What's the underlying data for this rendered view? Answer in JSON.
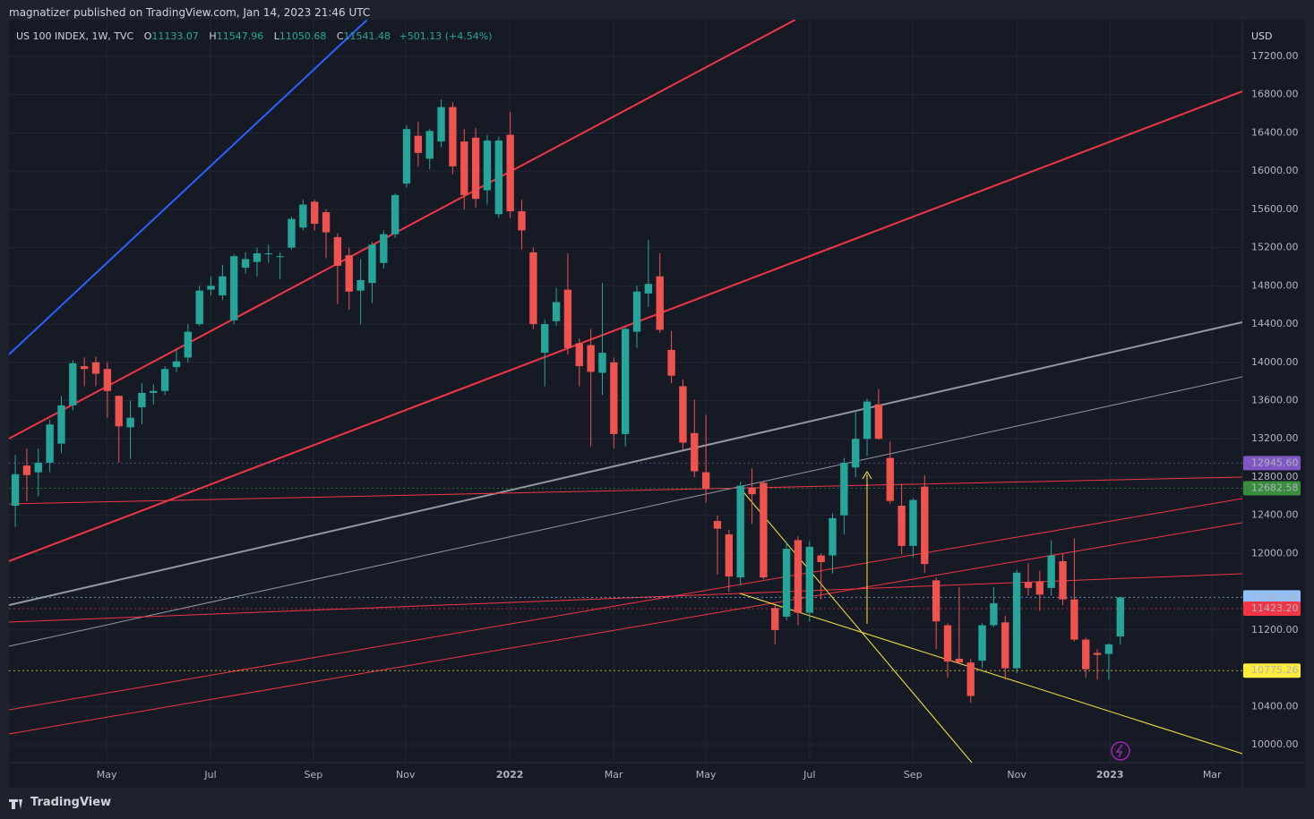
{
  "header": {
    "publisher": "magnatizer published on TradingView.com, Jan 14, 2023 21:46 UTC",
    "brand": "TradingView"
  },
  "chart_data": {
    "type": "candlestick",
    "legend": {
      "symbol": "US 100 INDEX, 1W, TVC",
      "keys": [
        "O",
        "H",
        "L",
        "C"
      ],
      "change": "+501.13 (+4.54%)"
    },
    "currency": "USD",
    "up_color": "#26a69a",
    "down_color": "#ef5350",
    "open": [
      12500,
      12920,
      12850,
      12950,
      13150,
      13550,
      13960,
      14000,
      13930,
      13650,
      13320,
      13530,
      13680,
      13700,
      13950,
      14050,
      14400,
      14760,
      14700,
      14440,
      14990,
      15050,
      15130,
      15100,
      15200,
      15410,
      15680,
      15570,
      15310,
      15120,
      14750,
      14830,
      15040,
      15340,
      15870,
      16370,
      16130,
      16310,
      16670,
      16310,
      16350,
      15800,
      15550,
      16380,
      15580,
      15150,
      14100,
      14430,
      14760,
      14200,
      14180,
      13890,
      14000,
      13250,
      14320,
      14720,
      14900,
      14130,
      13750,
      13260,
      12850,
      12340,
      12200,
      11750,
      12690,
      12740,
      11430,
      11340,
      12140,
      11380,
      11980,
      11980,
      12400,
      12900,
      13200,
      13560,
      13000,
      12500,
      12080,
      12700,
      11720,
      11250,
      10900,
      10860,
      10880,
      11250,
      11280,
      10800,
      11700,
      11710,
      11640,
      11920,
      11520,
      11100,
      10960,
      10950,
      11133.07
    ],
    "high": [
      13030,
      13100,
      13100,
      13400,
      13650,
      14020,
      14050,
      14060,
      14000,
      13650,
      13600,
      13780,
      13770,
      13960,
      14130,
      14400,
      14800,
      14900,
      15020,
      15130,
      15150,
      15200,
      15230,
      15150,
      15520,
      15700,
      15700,
      15600,
      15350,
      15200,
      15080,
      15260,
      15380,
      15770,
      16480,
      16520,
      16440,
      16750,
      16720,
      16440,
      16450,
      16380,
      16360,
      16620,
      15700,
      15200,
      14450,
      14780,
      15140,
      14250,
      14350,
      14830,
      14050,
      14370,
      14800,
      15280,
      15140,
      14330,
      13820,
      13610,
      13450,
      12400,
      12250,
      12750,
      12890,
      12760,
      11460,
      12120,
      12180,
      12130,
      12000,
      12420,
      13000,
      13500,
      13620,
      13720,
      13170,
      12730,
      12580,
      12820,
      11750,
      11270,
      11650,
      10900,
      11270,
      11650,
      11350,
      11830,
      11900,
      11820,
      12140,
      12000,
      12160,
      11120,
      11000,
      11060,
      11547.96
    ],
    "low": [
      12280,
      12550,
      12600,
      12850,
      13050,
      13500,
      13750,
      13750,
      13420,
      12950,
      12990,
      13350,
      13560,
      13660,
      13900,
      14000,
      14380,
      14700,
      14650,
      14400,
      14930,
      14900,
      15040,
      14870,
      15180,
      15380,
      15380,
      15090,
      14610,
      14550,
      14400,
      14620,
      14980,
      15300,
      15830,
      16050,
      16020,
      16250,
      15970,
      15600,
      15620,
      15650,
      15510,
      15510,
      15180,
      14350,
      13750,
      14380,
      14080,
      13750,
      13120,
      13660,
      13100,
      13120,
      14150,
      14580,
      14310,
      13780,
      13090,
      12800,
      12530,
      11780,
      11600,
      11670,
      12310,
      11730,
      11050,
      11300,
      11250,
      11290,
      11520,
      11790,
      12200,
      12800,
      13020,
      13190,
      12520,
      11990,
      11960,
      11800,
      11000,
      10700,
      10840,
      10440,
      10800,
      11230,
      10680,
      10750,
      11560,
      11400,
      11560,
      11460,
      11080,
      10700,
      10680,
      10680,
      11050.68
    ],
    "close": [
      12830,
      12820,
      12950,
      13350,
      13550,
      13990,
      13930,
      13880,
      13700,
      13330,
      13420,
      13680,
      13700,
      13930,
      14010,
      14320,
      14750,
      14800,
      14900,
      15110,
      15080,
      15140,
      15140,
      15110,
      15500,
      15650,
      15450,
      15360,
      15010,
      14740,
      14860,
      15230,
      15340,
      15750,
      16440,
      16190,
      16420,
      16670,
      16050,
      15750,
      15710,
      16320,
      16320,
      15580,
      15380,
      14400,
      14400,
      14630,
      14150,
      13960,
      13900,
      14100,
      13250,
      14350,
      14740,
      14820,
      14340,
      13860,
      13160,
      12860,
      12680,
      12260,
      11760,
      12710,
      12620,
      11750,
      11200,
      12050,
      11380,
      12070,
      11910,
      12370,
      12950,
      13200,
      13590,
      13200,
      12550,
      12080,
      12560,
      11890,
      11290,
      10870,
      10860,
      10510,
      11250,
      11480,
      10800,
      11800,
      11640,
      11570,
      11980,
      11520,
      11100,
      10790,
      10940,
      11050,
      11541.48
    ],
    "xlim": [
      -0.55,
      106.6
    ],
    "xticks": [
      {
        "value": 7.94,
        "label": "May"
      },
      {
        "value": 16.96,
        "label": "Jul"
      },
      {
        "value": 25.9,
        "label": "Sep"
      },
      {
        "value": 33.9,
        "label": "Nov"
      },
      {
        "value": 42.96,
        "label": "2022"
      },
      {
        "value": 51.98,
        "label": "Mar"
      },
      {
        "value": 60,
        "label": "May"
      },
      {
        "value": 69,
        "label": "Jul"
      },
      {
        "value": 77.98,
        "label": "Sep"
      },
      {
        "value": 87,
        "label": "Nov"
      },
      {
        "value": 95.1,
        "label": "2023"
      },
      {
        "value": 103.97,
        "label": "Mar"
      }
    ],
    "ylim": [
      9813,
      17584
    ],
    "yticks": [
      {
        "value": 10000,
        "label": "10000.00"
      },
      {
        "value": 10400,
        "label": "10400.00"
      },
      {
        "value": 11200,
        "label": "11200.00"
      },
      {
        "value": 12000,
        "label": "12000.00"
      },
      {
        "value": 12400,
        "label": "12400.00"
      },
      {
        "value": 12800,
        "label": "12800.00"
      },
      {
        "value": 13200,
        "label": "13200.00"
      },
      {
        "value": 13600,
        "label": "13600.00"
      },
      {
        "value": 14000,
        "label": "14000.00"
      },
      {
        "value": 14400,
        "label": "14400.00"
      },
      {
        "value": 14800,
        "label": "14800.00"
      },
      {
        "value": 15200,
        "label": "15200.00"
      },
      {
        "value": 15600,
        "label": "15600.00"
      },
      {
        "value": 16000,
        "label": "16000.00"
      },
      {
        "value": 16400,
        "label": "16400.00"
      },
      {
        "value": 16800,
        "label": "16800.00"
      },
      {
        "value": 17200,
        "label": "17200.00"
      }
    ],
    "grid": true,
    "price_labels": [
      {
        "value": 12945.6,
        "label": "12945.60",
        "color": "#7e57c2"
      },
      {
        "value": 12682.58,
        "label": "12682.58",
        "color": "#388e3c"
      },
      {
        "value": 11541.48,
        "label": "11541.48",
        "color": "#90bff9"
      },
      {
        "value": 11423.2,
        "label": "11423.20",
        "color": "#f23645"
      },
      {
        "value": 10775.26,
        "label": "10775.26",
        "color": "#ffeb3b"
      }
    ]
  }
}
